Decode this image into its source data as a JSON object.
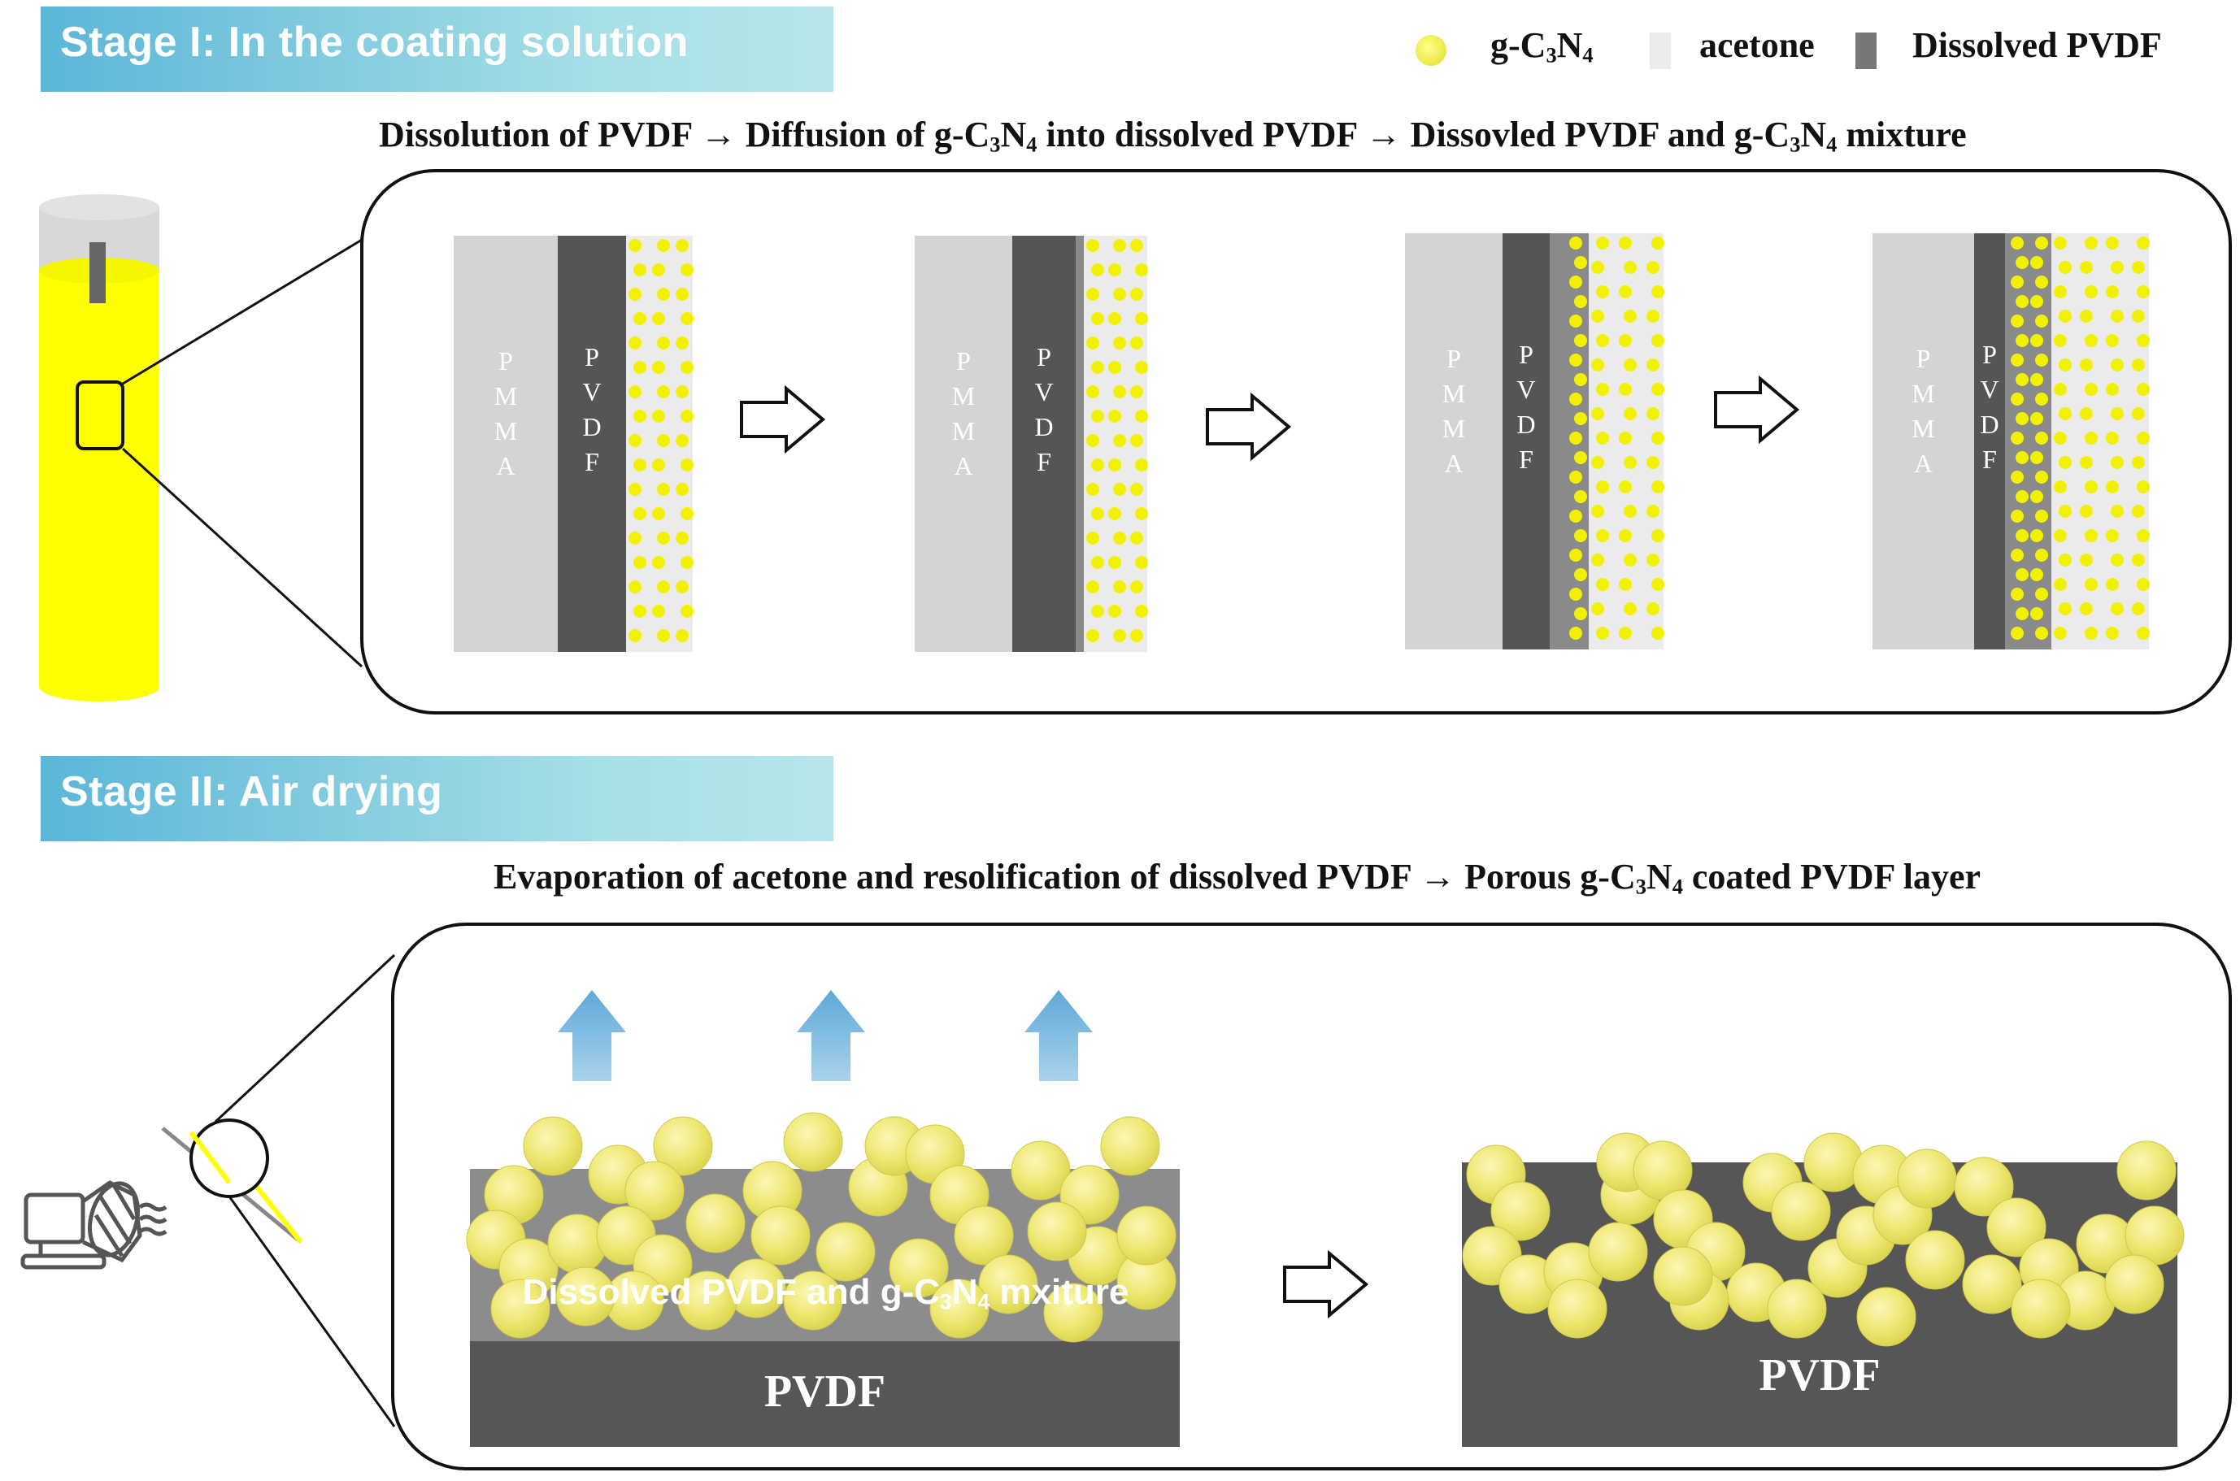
{
  "stage1": {
    "title": "Stage I: In the coating solution",
    "caption": {
      "p1": "Dissolution of PVDF →  Diffusion of g-C",
      "s1": "3",
      "p2": "N",
      "s2": "4",
      "p3": " into dissolved PVDF → Dissovled PVDF and  g-C",
      "s3": "3",
      "p4": "N",
      "s4": "4",
      "p5": " mixture"
    }
  },
  "stage2": {
    "title": "Stage II: Air drying",
    "caption": {
      "p1": "Evaporation of acetone and resolification of dissolved PVDF → Porous g-C",
      "s1": "3",
      "p2": "N",
      "s2": "4",
      "p3": " coated PVDF layer"
    },
    "mixture_label": {
      "p1": "Dissolved PVDF and g-C",
      "s1": "3",
      "p2": "N",
      "s2": "4",
      "p3": " mxiture"
    },
    "pvdf_label": "PVDF"
  },
  "legend": {
    "gcn": {
      "p1": "g-C",
      "s1": "3",
      "p2": "N",
      "s2": "4"
    },
    "acetone": "acetone",
    "pvdf": "Dissolved PVDF"
  },
  "layer_letters": {
    "pmma": [
      "P",
      "M",
      "M",
      "A"
    ],
    "pvdf": [
      "P",
      "V",
      "D",
      "F"
    ]
  },
  "colors": {
    "particle": "#f2f200",
    "particle_soft": "#ede87a",
    "pvdf_dark": "#555555",
    "dissolved": "#8a8a8a",
    "pmma": "#d4d4d4",
    "acetone": "#ebebeb",
    "cylinder": "#ffff00",
    "arrow_blue": "#6fb3dd"
  }
}
